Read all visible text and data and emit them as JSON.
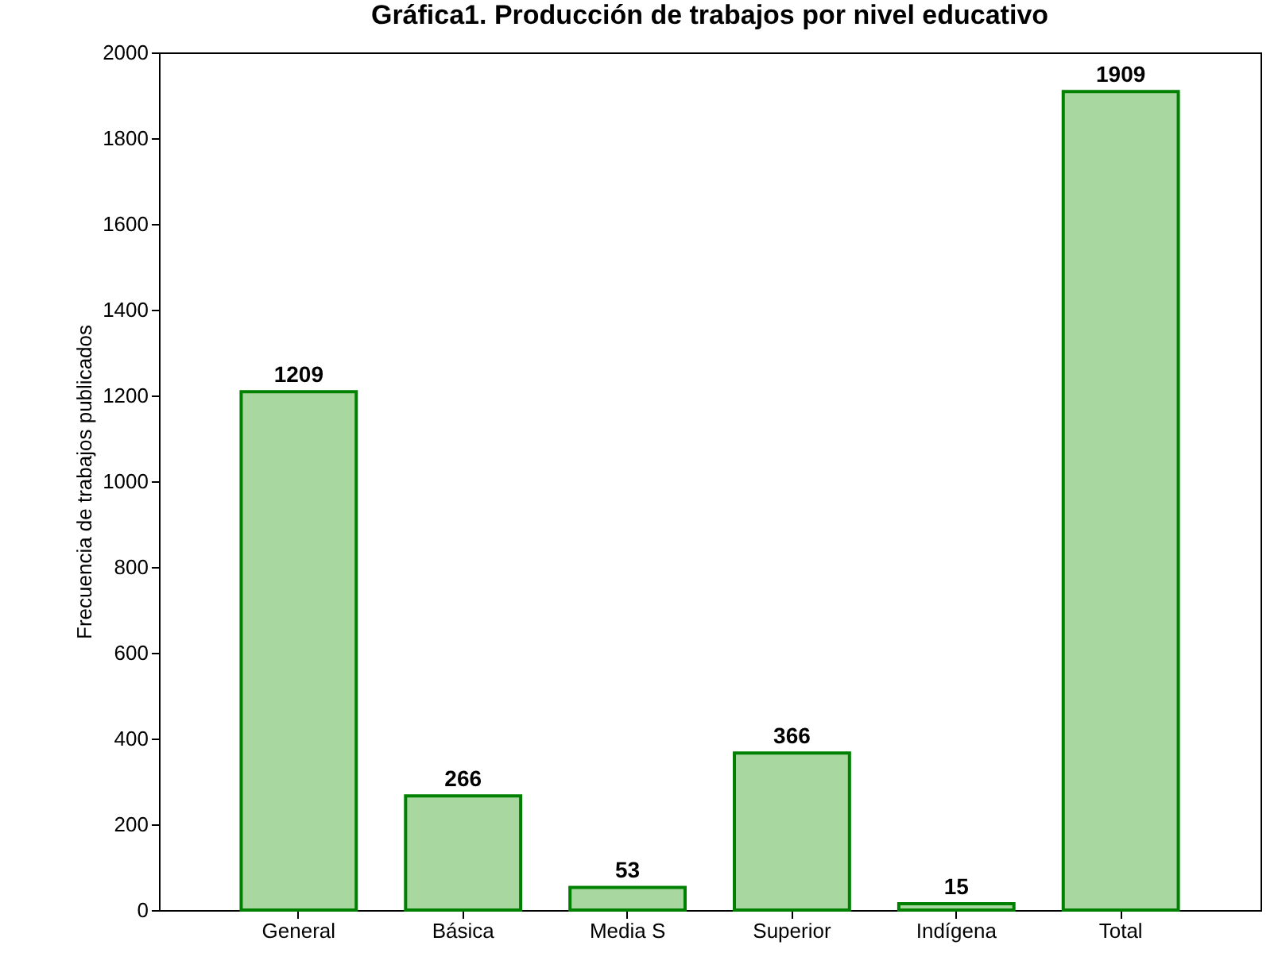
{
  "chart_data": {
    "type": "bar",
    "title": "Gráfica1. Producción de trabajos por nivel educativo",
    "ylabel": "Frecuencia de trabajos publicados",
    "categories": [
      "General",
      "Básica",
      "Media S",
      "Superior",
      "Indígena",
      "Total"
    ],
    "values": [
      1209,
      266,
      53,
      366,
      15,
      1909
    ],
    "color": "#a8d8a0",
    "ylim": [
      0,
      2000
    ],
    "yticks": [
      0,
      200,
      400,
      600,
      800,
      1000,
      1200,
      1400,
      1600,
      1800,
      2000
    ],
    "grid": false,
    "data_labels": true
  }
}
